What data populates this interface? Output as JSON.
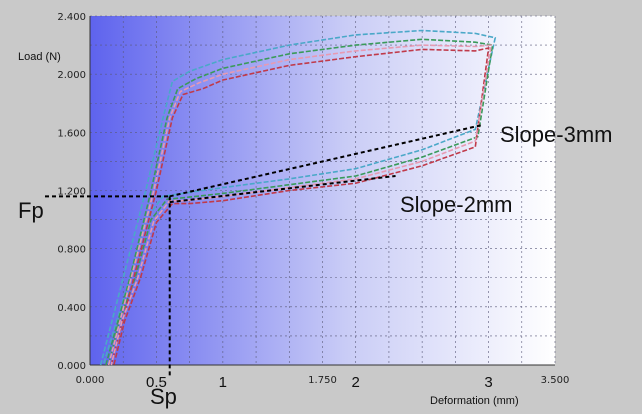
{
  "chart_data": {
    "type": "line",
    "title": "",
    "ylabel": "Load (N)",
    "xlabel": "Deformation (mm)",
    "xlim": [
      0,
      3.5
    ],
    "ylim": [
      0,
      2.4
    ],
    "grid": true,
    "x_ticks": [
      "0.000",
      "1.750",
      "3.500"
    ],
    "y_ticks": [
      "0.000",
      "0.400",
      "0.800",
      "1.200",
      "1.600",
      "2.000",
      "2.400"
    ],
    "x_annotations": [
      {
        "label": "0.5",
        "x": 0.5
      },
      {
        "label": "1",
        "x": 1.0
      },
      {
        "label": "2",
        "x": 2.0
      },
      {
        "label": "3",
        "x": 3.0
      }
    ],
    "markers": {
      "fp": {
        "label": "Fp",
        "load": 1.16
      },
      "sp": {
        "label": "Sp",
        "deformation": 0.6
      }
    },
    "slope_lines": [
      {
        "label": "Slope-3mm",
        "x": [
          0.6,
          2.95
        ],
        "y": [
          1.16,
          1.65
        ]
      },
      {
        "label": "Slope-2mm",
        "x": [
          0.6,
          2.3
        ],
        "y": [
          1.12,
          1.3
        ]
      }
    ],
    "series": [
      {
        "color": "#4aa8c8",
        "x": [
          0.08,
          0.25,
          0.42,
          0.55,
          0.62,
          0.75,
          1.0,
          1.5,
          2.0,
          2.5,
          2.9,
          3.05,
          2.9,
          2.5,
          2.0,
          1.5,
          1.0,
          0.7,
          0.55,
          0.42,
          0.3,
          0.2,
          0.1
        ],
        "y": [
          0.0,
          0.6,
          1.2,
          1.7,
          1.95,
          2.02,
          2.1,
          2.2,
          2.27,
          2.3,
          2.28,
          2.25,
          1.62,
          1.48,
          1.35,
          1.28,
          1.22,
          1.18,
          1.16,
          1.0,
          0.6,
          0.3,
          0.0
        ]
      },
      {
        "color": "#3a9a5a",
        "x": [
          0.12,
          0.3,
          0.46,
          0.58,
          0.66,
          0.8,
          1.0,
          1.5,
          2.0,
          2.5,
          2.9,
          3.03,
          2.92,
          2.5,
          2.0,
          1.5,
          1.0,
          0.7,
          0.58,
          0.46,
          0.34,
          0.22,
          0.14
        ],
        "y": [
          0.0,
          0.6,
          1.2,
          1.7,
          1.9,
          1.97,
          2.04,
          2.14,
          2.2,
          2.24,
          2.22,
          2.2,
          1.57,
          1.43,
          1.3,
          1.24,
          1.18,
          1.15,
          1.14,
          1.0,
          0.6,
          0.3,
          0.0
        ]
      },
      {
        "color": "#c03a4a",
        "x": [
          0.16,
          0.33,
          0.5,
          0.62,
          0.7,
          0.85,
          1.0,
          1.5,
          2.0,
          2.5,
          2.9,
          3.0,
          2.9,
          2.5,
          2.0,
          1.5,
          1.0,
          0.75,
          0.62,
          0.5,
          0.38,
          0.26,
          0.18
        ],
        "y": [
          0.0,
          0.6,
          1.2,
          1.7,
          1.86,
          1.9,
          1.96,
          2.06,
          2.12,
          2.17,
          2.16,
          2.18,
          1.5,
          1.37,
          1.25,
          1.2,
          1.13,
          1.11,
          1.11,
          0.98,
          0.6,
          0.3,
          0.0
        ]
      },
      {
        "color": "#e79ab2",
        "x": [
          0.14,
          0.31,
          0.48,
          0.6,
          0.68,
          0.82,
          1.0,
          1.5,
          2.0,
          2.5,
          2.9,
          3.02,
          2.9,
          2.5,
          2.0,
          1.5,
          1.0,
          0.72,
          0.6,
          0.48,
          0.36,
          0.24,
          0.16
        ],
        "y": [
          0.0,
          0.6,
          1.2,
          1.7,
          1.88,
          1.94,
          2.0,
          2.1,
          2.16,
          2.2,
          2.19,
          2.2,
          1.54,
          1.4,
          1.28,
          1.22,
          1.16,
          1.13,
          1.13,
          0.99,
          0.6,
          0.3,
          0.0
        ]
      }
    ]
  }
}
